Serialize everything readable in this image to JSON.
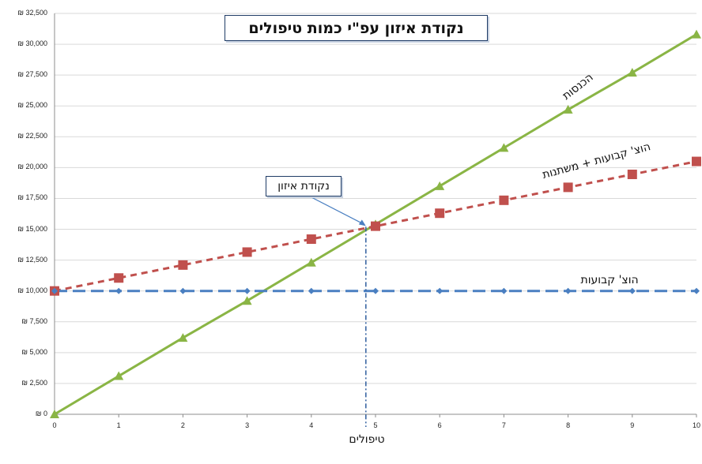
{
  "chart_data": {
    "type": "line",
    "title": "נקודת איזון עפ\"י כמות טיפולים",
    "xlabel": "טיפולים",
    "ylabel": "",
    "x": [
      0,
      1,
      2,
      3,
      4,
      5,
      6,
      7,
      8,
      9,
      10
    ],
    "xlim": [
      0,
      10
    ],
    "ylim": [
      0,
      32500
    ],
    "y_ticks": [
      "₪ 0",
      "₪ 2,500",
      "₪ 5,000",
      "₪ 7,500",
      "₪ 10,000",
      "₪ 12,500",
      "₪ 15,000",
      "₪ 17,500",
      "₪ 20,000",
      "₪ 22,500",
      "₪ 25,000",
      "₪ 27,500",
      "₪ 30,000",
      "₪ 32,500"
    ],
    "x_ticks": [
      "0",
      "1",
      "2",
      "3",
      "4",
      "5",
      "6",
      "7",
      "8",
      "9",
      "10"
    ],
    "grid": "horizontal",
    "series": [
      {
        "name": "הכנסות",
        "color": "#8ab545",
        "marker": "triangle",
        "line": "solid",
        "values": [
          0,
          3100,
          6200,
          9200,
          12300,
          15400,
          18500,
          21600,
          24700,
          27700,
          30800
        ]
      },
      {
        "name": "הוצ' קבועות + משתנות",
        "color": "#c0504d",
        "marker": "square",
        "line": "dashed",
        "values": [
          10000,
          11050,
          12100,
          13150,
          14200,
          15250,
          16300,
          17350,
          18400,
          19450,
          20500
        ]
      },
      {
        "name": "הוצ' קבועות",
        "color": "#4a7fc1",
        "marker": "diamond",
        "line": "long-dashed",
        "values": [
          10000,
          10000,
          10000,
          10000,
          10000,
          10000,
          10000,
          10000,
          10000,
          10000,
          10000
        ]
      }
    ],
    "annotations": [
      {
        "text": "נקודת איזון",
        "x": 4.85,
        "y": 15200
      }
    ]
  }
}
